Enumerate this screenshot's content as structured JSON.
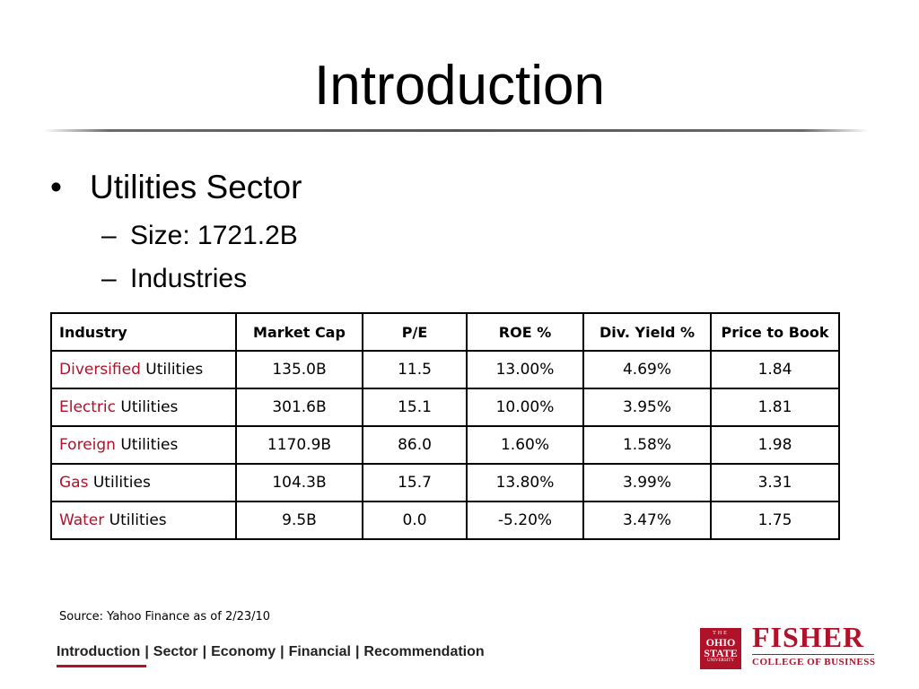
{
  "slide": {
    "title": "Introduction",
    "bullet": "Utilities Sector",
    "sub_bullets": [
      "Size: 1721.2B",
      "Industries"
    ],
    "bullet_symbol": "•",
    "dash_symbol": "–"
  },
  "table": {
    "headers": [
      "Industry",
      "Market Cap",
      "P/E",
      "ROE %",
      "Div. Yield %",
      "Price to Book"
    ],
    "rows": [
      {
        "highlight": "Diversified",
        "rest": " Utilities",
        "cells": [
          "135.0B",
          "11.5",
          "13.00%",
          "4.69%",
          "1.84"
        ]
      },
      {
        "highlight": "Electric",
        "rest": " Utilities",
        "cells": [
          "301.6B",
          "15.1",
          "10.00%",
          "3.95%",
          "1.81"
        ]
      },
      {
        "highlight": "Foreign",
        "rest": " Utilities",
        "cells": [
          "1170.9B",
          "86.0",
          "1.60%",
          "1.58%",
          "1.98"
        ]
      },
      {
        "highlight": "Gas",
        "rest": " Utilities",
        "cells": [
          "104.3B",
          "15.7",
          "13.80%",
          "3.99%",
          "3.31"
        ]
      },
      {
        "highlight": "Water",
        "rest": " Utilities",
        "cells": [
          "9.5B",
          "0.0",
          "-5.20%",
          "3.47%",
          "1.75"
        ]
      }
    ]
  },
  "source": "Source: Yahoo Finance as of 2/23/10",
  "nav": {
    "items": [
      "Introduction",
      "Sector",
      "Economy",
      "Financial",
      "Recommendation"
    ],
    "separator": "|",
    "active_index": 0
  },
  "logo": {
    "osu_line1": "THE",
    "osu_line2a": "OHIO",
    "osu_line2b": "STATE",
    "osu_line3": "UNIVERSITY",
    "fisher": "FISHER",
    "college": "COLLEGE OF BUSINESS"
  },
  "colors": {
    "accent": "#b0122a",
    "text": "#000000",
    "rule": "#555555"
  }
}
